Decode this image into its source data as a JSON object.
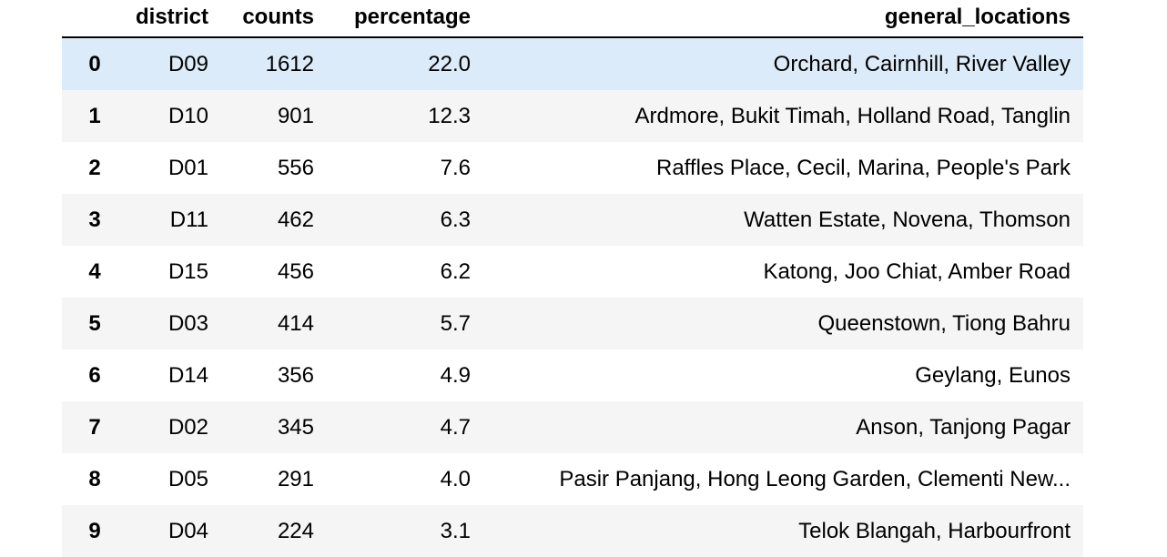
{
  "table": {
    "columns": [
      "district",
      "counts",
      "percentage",
      "general_locations"
    ],
    "rows": [
      {
        "index": "0",
        "district": "D09",
        "counts": "1612",
        "percentage": "22.0",
        "general_locations": "Orchard, Cairnhill, River Valley"
      },
      {
        "index": "1",
        "district": "D10",
        "counts": "901",
        "percentage": "12.3",
        "general_locations": "Ardmore, Bukit Timah, Holland Road, Tanglin"
      },
      {
        "index": "2",
        "district": "D01",
        "counts": "556",
        "percentage": "7.6",
        "general_locations": "Raffles Place, Cecil, Marina, People's Park"
      },
      {
        "index": "3",
        "district": "D11",
        "counts": "462",
        "percentage": "6.3",
        "general_locations": "Watten Estate, Novena, Thomson"
      },
      {
        "index": "4",
        "district": "D15",
        "counts": "456",
        "percentage": "6.2",
        "general_locations": "Katong, Joo Chiat, Amber Road"
      },
      {
        "index": "5",
        "district": "D03",
        "counts": "414",
        "percentage": "5.7",
        "general_locations": "Queenstown, Tiong Bahru"
      },
      {
        "index": "6",
        "district": "D14",
        "counts": "356",
        "percentage": "4.9",
        "general_locations": "Geylang, Eunos"
      },
      {
        "index": "7",
        "district": "D02",
        "counts": "345",
        "percentage": "4.7",
        "general_locations": "Anson, Tanjong Pagar"
      },
      {
        "index": "8",
        "district": "D05",
        "counts": "291",
        "percentage": "4.0",
        "general_locations": "Pasir Panjang, Hong Leong Garden, Clementi New..."
      },
      {
        "index": "9",
        "district": "D04",
        "counts": "224",
        "percentage": "3.1",
        "general_locations": "Telok Blangah, Harbourfront"
      }
    ],
    "colors": {
      "hover_row": "#dbebf9",
      "striped_row": "#f5f5f5",
      "header_rule": "#000000"
    }
  }
}
